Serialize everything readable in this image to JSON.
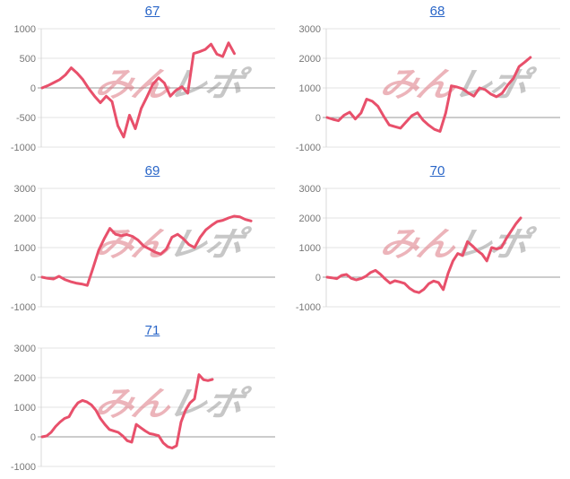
{
  "colors": {
    "link": "#2a66c8",
    "line": "#e8506b",
    "grid": "#e3e3e3",
    "zero_line": "#9a9a9a",
    "axis": "#d8d8d8",
    "tick_label": "#777777",
    "watermark_pink": "#d96a75",
    "watermark_gray": "#8f8f8f",
    "background": "#ffffff"
  },
  "watermark": {
    "text_pink": "みん",
    "text_gray": "レポ"
  },
  "chart_data": [
    {
      "type": "line",
      "title": "67",
      "xlabel": "",
      "ylabel": "",
      "ylim": [
        -1000,
        1000
      ],
      "yticks": [
        1000,
        500,
        0,
        -500,
        -1000
      ],
      "grid": true,
      "legend": false,
      "x_step": 6.5,
      "values": [
        0,
        40,
        90,
        140,
        220,
        340,
        250,
        140,
        -10,
        -140,
        -250,
        -140,
        -230,
        -640,
        -830,
        -460,
        -690,
        -350,
        -150,
        60,
        170,
        80,
        -140,
        -40,
        20,
        -90,
        580,
        610,
        650,
        740,
        570,
        530,
        760,
        580
      ]
    },
    {
      "type": "line",
      "title": "68",
      "xlabel": "",
      "ylabel": "",
      "ylim": [
        -1000,
        3000
      ],
      "yticks": [
        3000,
        2000,
        1000,
        0,
        -1000
      ],
      "grid": true,
      "legend": false,
      "x_step": 6.3,
      "values": [
        0,
        -60,
        -110,
        80,
        180,
        -50,
        150,
        620,
        550,
        380,
        50,
        -250,
        -310,
        -360,
        -150,
        60,
        160,
        -90,
        -260,
        -400,
        -470,
        150,
        1070,
        1030,
        970,
        830,
        720,
        1000,
        940,
        790,
        700,
        820,
        1100,
        1320,
        1720,
        1870,
        2030
      ]
    },
    {
      "type": "line",
      "title": "69",
      "xlabel": "",
      "ylabel": "",
      "ylim": [
        -1000,
        3000
      ],
      "yticks": [
        3000,
        2000,
        1000,
        0,
        -1000
      ],
      "grid": true,
      "legend": false,
      "x_step": 6.3,
      "values": [
        0,
        -40,
        -60,
        30,
        -80,
        -150,
        -200,
        -230,
        -280,
        300,
        900,
        1300,
        1650,
        1450,
        1400,
        1440,
        1380,
        1250,
        1050,
        950,
        850,
        780,
        950,
        1350,
        1450,
        1300,
        1100,
        1000,
        1350,
        1600,
        1750,
        1880,
        1920,
        2000,
        2060,
        2040,
        1950,
        1900
      ]
    },
    {
      "type": "line",
      "title": "70",
      "xlabel": "",
      "ylabel": "",
      "ylim": [
        -1000,
        3000
      ],
      "yticks": [
        3000,
        2000,
        1000,
        0,
        -1000
      ],
      "grid": true,
      "legend": false,
      "x_step": 5.4,
      "values": [
        0,
        -20,
        -50,
        60,
        90,
        -40,
        -90,
        -50,
        30,
        160,
        230,
        100,
        -60,
        -200,
        -120,
        -160,
        -210,
        -370,
        -480,
        -520,
        -410,
        -220,
        -130,
        -180,
        -420,
        130,
        550,
        800,
        730,
        1200,
        1060,
        900,
        780,
        550,
        1000,
        950,
        1000,
        1300,
        1550,
        1800,
        2000
      ]
    },
    {
      "type": "line",
      "title": "71",
      "xlabel": "",
      "ylabel": "",
      "ylim": [
        -1000,
        3000
      ],
      "yticks": [
        3000,
        2000,
        1000,
        0,
        -1000
      ],
      "grid": true,
      "legend": false,
      "x_step": 5.0,
      "values": [
        0,
        30,
        150,
        350,
        500,
        620,
        680,
        950,
        1150,
        1230,
        1180,
        1080,
        900,
        620,
        420,
        250,
        200,
        150,
        30,
        -130,
        -180,
        420,
        310,
        200,
        110,
        80,
        40,
        -200,
        -330,
        -380,
        -300,
        500,
        900,
        1150,
        1280,
        2100,
        1930,
        1900,
        1940
      ]
    }
  ]
}
